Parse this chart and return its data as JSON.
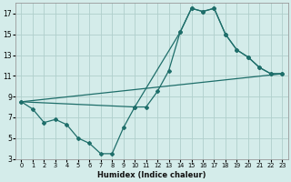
{
  "xlabel": "Humidex (Indice chaleur)",
  "bg_color": "#d4ecea",
  "grid_color": "#b0cfcc",
  "line_color": "#1e6e6a",
  "xlim": [
    -0.5,
    23.5
  ],
  "ylim": [
    3,
    18
  ],
  "xticks": [
    0,
    1,
    2,
    3,
    4,
    5,
    6,
    7,
    8,
    9,
    10,
    11,
    12,
    13,
    14,
    15,
    16,
    17,
    18,
    19,
    20,
    21,
    22,
    23
  ],
  "yticks": [
    3,
    5,
    7,
    9,
    11,
    13,
    15,
    17
  ],
  "line1": {
    "x": [
      0,
      1,
      2,
      3,
      4,
      5,
      6,
      7,
      8,
      9,
      10,
      11,
      12,
      13,
      14,
      15,
      16,
      17,
      18,
      19,
      20,
      21,
      22,
      23
    ],
    "y": [
      8.5,
      7.8,
      6.5,
      6.8,
      6.3,
      5.0,
      4.5,
      3.5,
      3.5,
      6.0,
      8.0,
      8.0,
      9.5,
      11.5,
      15.2,
      17.5,
      17.2,
      17.5,
      15.0,
      13.5,
      12.8,
      11.8,
      11.2,
      11.2
    ]
  },
  "line2": {
    "x": [
      0,
      10,
      14,
      15,
      16,
      17,
      18,
      19,
      20,
      21,
      22,
      23
    ],
    "y": [
      8.5,
      8.0,
      15.2,
      17.5,
      17.2,
      17.5,
      15.0,
      13.5,
      12.8,
      11.8,
      11.2,
      11.2
    ]
  },
  "line3": {
    "x": [
      0,
      23
    ],
    "y": [
      8.5,
      11.2
    ]
  }
}
